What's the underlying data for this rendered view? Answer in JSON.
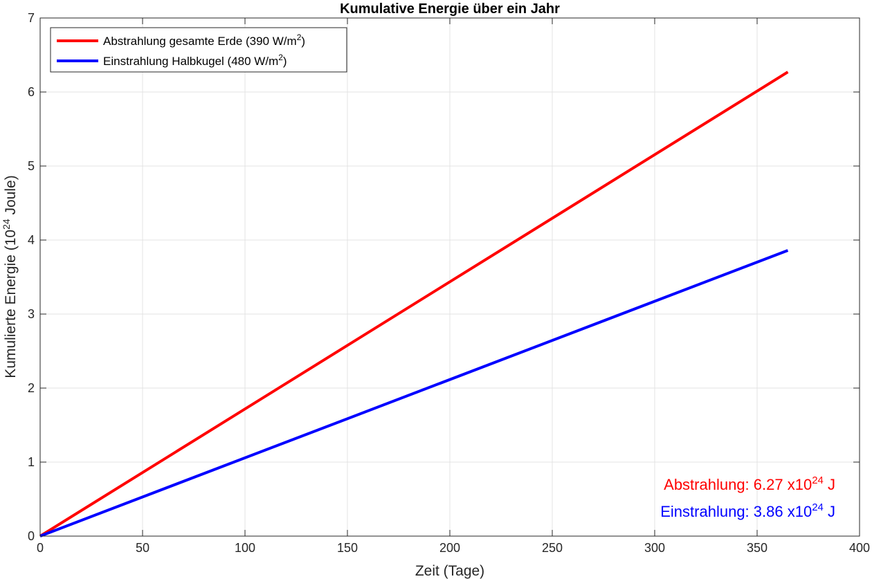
{
  "chart_data": {
    "type": "line",
    "title": "Kumulative Energie über ein Jahr",
    "xlabel": "Zeit (Tage)",
    "ylabel": {
      "prefix": "Kumulierte  Energie  (10",
      "exponent": "24",
      "suffix": "  Joule)"
    },
    "xlim": [
      0,
      400
    ],
    "ylim": [
      0,
      7
    ],
    "xticks": [
      0,
      50,
      100,
      150,
      200,
      250,
      300,
      350,
      400
    ],
    "yticks": [
      0,
      1,
      2,
      3,
      4,
      5,
      6,
      7
    ],
    "grid": true,
    "legend_position": "top-left",
    "series": [
      {
        "name": "Abstrahlung  gesamte  Erde  (390  W/m",
        "name_sup": "2",
        "name_end": ")",
        "color": "#ff0000",
        "x": [
          0,
          365
        ],
        "y": [
          0,
          6.27
        ]
      },
      {
        "name": "Einstrahlung  Halbkugel  (480  W/m",
        "name_sup": "2",
        "name_end": ")",
        "color": "#0000ff",
        "x": [
          0,
          365
        ],
        "y": [
          0,
          3.86
        ]
      }
    ],
    "annotations": [
      {
        "label": "Abstrahlung:  6.27  x10",
        "sup": "24",
        "unit": "  J",
        "color": "#ff0000"
      },
      {
        "label": "Einstrahlung:  3.86  x10",
        "sup": "24",
        "unit": "  J",
        "color": "#0000ff"
      }
    ]
  }
}
